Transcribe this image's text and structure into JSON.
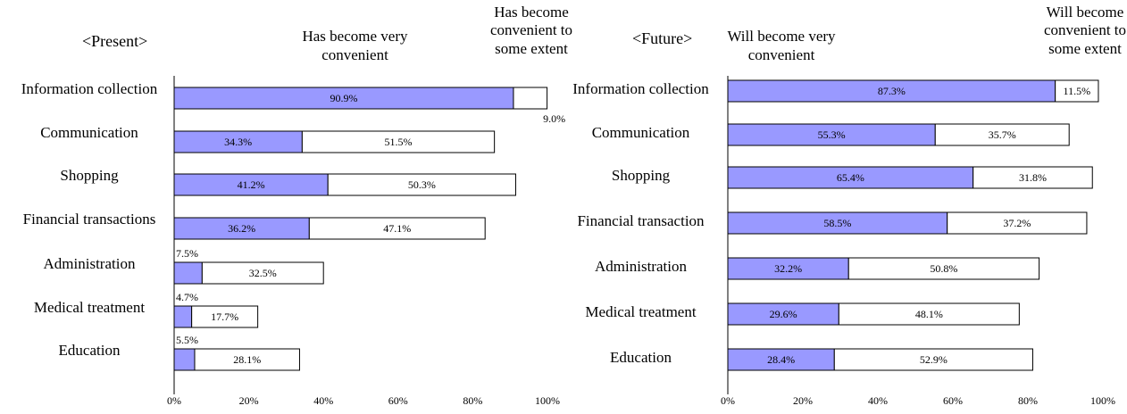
{
  "chart_data": [
    {
      "type": "bar",
      "orientation": "horizontal",
      "stacked": true,
      "title": "<Present>",
      "categories": [
        "Information collection",
        "Communication",
        "Shopping",
        "Financial transactions",
        "Administration",
        "Medical treatment",
        "Education"
      ],
      "series": [
        {
          "name": "Has become very convenient",
          "color": "#9999ff",
          "values": [
            90.9,
            34.3,
            41.2,
            36.2,
            7.5,
            4.7,
            5.5
          ],
          "value_labels": [
            "90.9%",
            "34.3%",
            "41.2%",
            "36.2%",
            "7.5%",
            "4.7%",
            "5.5%"
          ]
        },
        {
          "name": "Has become convenient to some extent",
          "color": "#ffffff",
          "values": [
            9.0,
            51.5,
            50.3,
            47.1,
            32.5,
            17.7,
            28.1
          ],
          "value_labels": [
            "9.0%",
            "51.5%",
            "50.3%",
            "47.1%",
            "32.5%",
            "17.7%",
            "28.1%"
          ]
        }
      ],
      "xlim": [
        0,
        100
      ],
      "xticks": [
        {
          "value": 0,
          "label": "0%"
        },
        {
          "value": 20,
          "label": "20%"
        },
        {
          "value": 40,
          "label": "40%"
        },
        {
          "value": 60,
          "label": "60%"
        },
        {
          "value": 80,
          "label": "80%"
        },
        {
          "value": 100,
          "label": "100%"
        }
      ]
    },
    {
      "type": "bar",
      "orientation": "horizontal",
      "stacked": true,
      "title": "<Future>",
      "categories": [
        "Information collection",
        "Communication",
        "Shopping",
        "Financial transaction",
        "Administration",
        "Medical treatment",
        "Education"
      ],
      "series": [
        {
          "name": "Will become very convenient",
          "color": "#9999ff",
          "values": [
            87.3,
            55.3,
            65.4,
            58.5,
            32.2,
            29.6,
            28.4
          ],
          "value_labels": [
            "87.3%",
            "55.3%",
            "65.4%",
            "58.5%",
            "32.2%",
            "29.6%",
            "28.4%"
          ]
        },
        {
          "name": "Will become convenient to some extent",
          "color": "#ffffff",
          "values": [
            11.5,
            35.7,
            31.8,
            37.2,
            50.8,
            48.1,
            52.9
          ],
          "value_labels": [
            "11.5%",
            "35.7%",
            "31.8%",
            "37.2%",
            "50.8%",
            "48.1%",
            "52.9%"
          ]
        }
      ],
      "xlim": [
        0,
        100
      ],
      "xticks": [
        {
          "value": 0,
          "label": "0%"
        },
        {
          "value": 20,
          "label": "20%"
        },
        {
          "value": 40,
          "label": "40%"
        },
        {
          "value": 60,
          "label": "60%"
        },
        {
          "value": 80,
          "label": "80%"
        },
        {
          "value": 100,
          "label": "100%"
        }
      ]
    }
  ]
}
